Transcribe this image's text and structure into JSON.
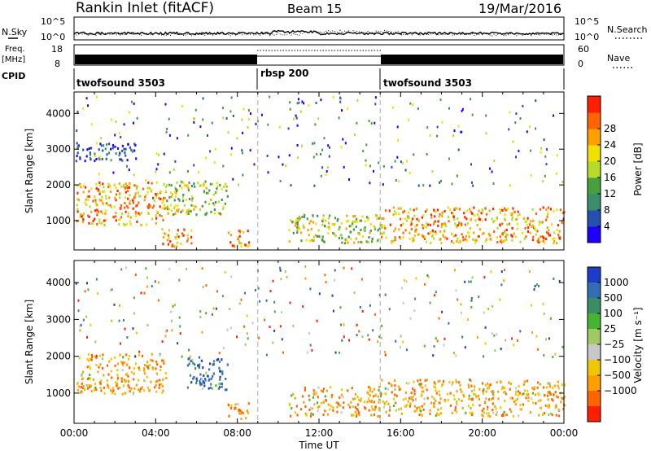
{
  "header": {
    "station": "Rankin Inlet (fitACF)",
    "beam": "Beam 15",
    "date": "19/Mar/2016"
  },
  "strips": {
    "nsky_label": "N.Sky",
    "nsearch_label": "N.Search",
    "nsky_ticks": [
      "10^5",
      "10^0"
    ],
    "nsearch_ticks": [
      "10^5",
      "10^0"
    ],
    "freq_label_1": "Freq.",
    "freq_label_2": "[MHz]",
    "freq_ticks": [
      "18",
      "8"
    ],
    "nave_label": "Nave",
    "nave_ticks": [
      "60",
      "0"
    ],
    "cpid_label": "CPID",
    "cpid_segments": [
      {
        "name": "twofsound 3503",
        "start": 0,
        "end": 9
      },
      {
        "name": "rbsp 200",
        "start": 9,
        "end": 15
      },
      {
        "name": "twofsound 3503",
        "start": 15,
        "end": 24
      }
    ]
  },
  "chart_data": [
    {
      "type": "heatmap",
      "xlabel": "Time UT",
      "ylabel": "Slant Range [km]",
      "xlim": [
        0,
        24
      ],
      "ylim": [
        180,
        4600
      ],
      "x_ticks": [
        "00:00",
        "04:00",
        "08:00",
        "12:00",
        "16:00",
        "20:00",
        "00:00"
      ],
      "y_ticks": [
        "1000",
        "2000",
        "3000",
        "4000"
      ],
      "y_tick_values": [
        1000,
        2000,
        3000,
        4000
      ],
      "colorbar": {
        "label": "Power [dB]",
        "ticks": [
          "4",
          "8",
          "12",
          "16",
          "20",
          "24",
          "28"
        ],
        "colors": [
          "#1f00ff",
          "#2450b0",
          "#3c8c6e",
          "#46a03c",
          "#b4dc28",
          "#f0e100",
          "#ffa000",
          "#ff6400",
          "#ff1e00"
        ]
      },
      "mode_boundaries": [
        9,
        15
      ],
      "regions": [
        {
          "t0": 0.1,
          "t1": 4.5,
          "r0": 900,
          "r1": 2100,
          "level": "high"
        },
        {
          "t0": 4.5,
          "t1": 7.5,
          "r0": 1200,
          "r1": 2100,
          "level": "mid"
        },
        {
          "t0": 4.2,
          "t1": 5.8,
          "r0": 300,
          "r1": 800,
          "level": "high"
        },
        {
          "t0": 7.5,
          "t1": 8.7,
          "r0": 300,
          "r1": 750,
          "level": "high"
        },
        {
          "t0": 10.5,
          "t1": 15.0,
          "r0": 400,
          "r1": 1200,
          "level": "mid"
        },
        {
          "t0": 15.0,
          "t1": 24.0,
          "r0": 400,
          "r1": 1400,
          "level": "high"
        },
        {
          "t0": 0.0,
          "t1": 3.0,
          "r0": 2700,
          "r1": 3200,
          "level": "low"
        }
      ]
    },
    {
      "type": "heatmap",
      "xlabel": "Time UT",
      "ylabel": "Slant Range [km]",
      "xlim": [
        0,
        24
      ],
      "ylim": [
        180,
        4600
      ],
      "x_ticks": [
        "00:00",
        "04:00",
        "08:00",
        "12:00",
        "16:00",
        "20:00",
        "00:00"
      ],
      "y_ticks": [
        "1000",
        "2000",
        "3000",
        "4000"
      ],
      "y_tick_values": [
        1000,
        2000,
        3000,
        4000
      ],
      "colorbar": {
        "label": "Velocity [m s⁻¹]",
        "ticks": [
          "1000",
          "500",
          "100",
          "25",
          "−25",
          "−100",
          "−500",
          "−1000"
        ],
        "colors": [
          "#1e3cc8",
          "#326eb4",
          "#3c8c64",
          "#46b432",
          "#a0c864",
          "#c8c8c8",
          "#f0c800",
          "#ffa000",
          "#ff6400",
          "#ff1e00"
        ]
      },
      "mode_boundaries": [
        9,
        15
      ],
      "regions": [
        {
          "t0": 0.1,
          "t1": 4.5,
          "r0": 1000,
          "r1": 2100,
          "level": "neg-mid"
        },
        {
          "t0": 5.5,
          "t1": 7.5,
          "r0": 1100,
          "r1": 2000,
          "level": "pos-high"
        },
        {
          "t0": 7.5,
          "t1": 8.7,
          "r0": 300,
          "r1": 750,
          "level": "neg-mid"
        },
        {
          "t0": 10.5,
          "t1": 15.0,
          "r0": 400,
          "r1": 1200,
          "level": "neg-mid"
        },
        {
          "t0": 15.0,
          "t1": 24.0,
          "r0": 400,
          "r1": 1400,
          "level": "neg-mid"
        }
      ]
    }
  ]
}
